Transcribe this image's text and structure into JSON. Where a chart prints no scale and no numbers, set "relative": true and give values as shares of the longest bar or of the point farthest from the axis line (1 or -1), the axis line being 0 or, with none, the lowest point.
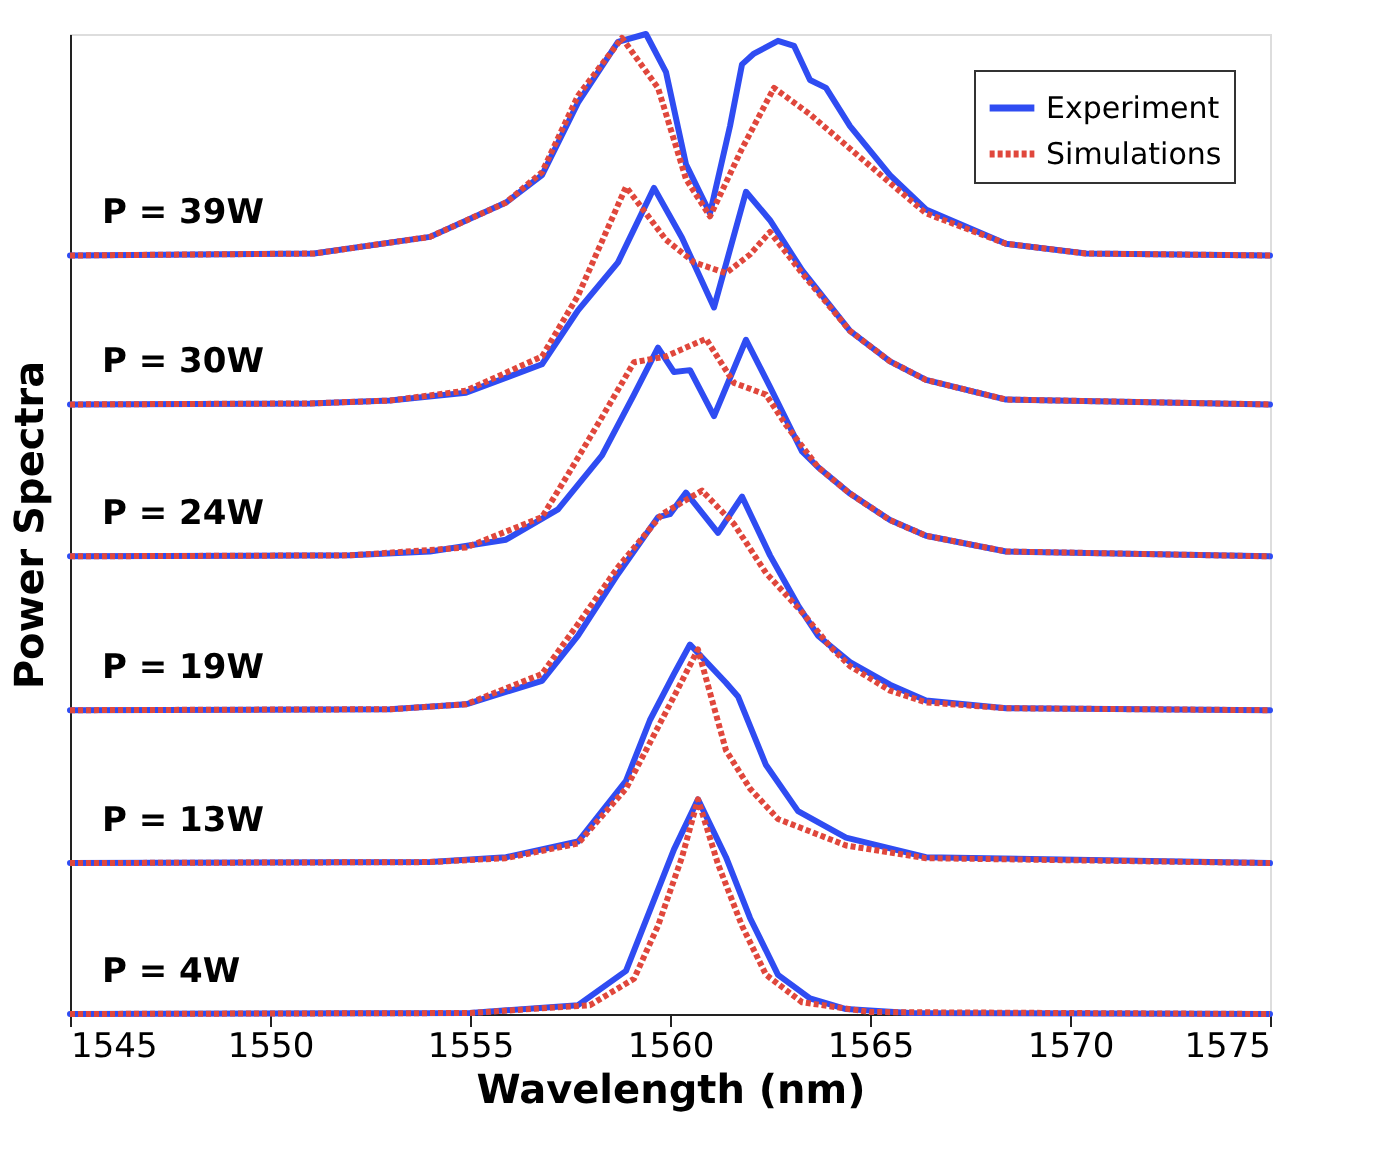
{
  "chart_data": {
    "type": "line",
    "relative": true,
    "xlabel": "Wavelength (nm)",
    "ylabel": "Power Spectra",
    "xlim": [
      1545,
      1575
    ],
    "xticks": [
      1545,
      1550,
      1555,
      1560,
      1565,
      1570,
      1575
    ],
    "grid": false,
    "legend": "top right",
    "marker": "none",
    "series": [
      {
        "name": "Experiment",
        "color": "#2f4cf2",
        "line_style": "solid",
        "x": [
          1545,
          1551.1,
          1554.0,
          1555.9,
          1556.8,
          1557.7,
          1558.7,
          1559.4,
          1559.9,
          1560.4,
          1561.0,
          1561.5,
          1561.8,
          1562.1,
          1562.7,
          1563.1,
          1563.5,
          1563.9,
          1564.5,
          1565.5,
          1566.4,
          1568.4,
          1570.4,
          1575
        ],
        "values": [
          0.774,
          0.776,
          0.793,
          0.828,
          0.856,
          0.93,
          0.992,
          1.0,
          0.961,
          0.867,
          0.817,
          0.906,
          0.969,
          0.98,
          0.993,
          0.988,
          0.953,
          0.945,
          0.906,
          0.856,
          0.821,
          0.786,
          0.776,
          0.774
        ]
      },
      {
        "name": "Simulations",
        "color": "#e0473c",
        "line_style": "dotted",
        "x": [
          1545,
          1551.1,
          1554.0,
          1555.9,
          1556.8,
          1557.7,
          1558.8,
          1559.7,
          1560.4,
          1561.0,
          1561.8,
          1562.6,
          1563.5,
          1564.5,
          1565.5,
          1566.4,
          1568.4,
          1570.4,
          1575
        ],
        "values": [
          0.774,
          0.776,
          0.793,
          0.828,
          0.859,
          0.937,
          0.996,
          0.945,
          0.852,
          0.814,
          0.883,
          0.945,
          0.918,
          0.883,
          0.848,
          0.817,
          0.786,
          0.776,
          0.774
        ]
      },
      {
        "color": "#2f4cf2",
        "line_style": "solid",
        "x": [
          1545,
          1551,
          1553.0,
          1554.9,
          1556.8,
          1557.7,
          1558.7,
          1559.6,
          1560.3,
          1561.1,
          1561.9,
          1562.5,
          1563.3,
          1564.5,
          1565.5,
          1566.4,
          1568.4,
          1575
        ],
        "values": [
          0.622,
          0.623,
          0.626,
          0.634,
          0.663,
          0.718,
          0.767,
          0.843,
          0.792,
          0.721,
          0.839,
          0.81,
          0.759,
          0.697,
          0.666,
          0.647,
          0.627,
          0.622
        ]
      },
      {
        "color": "#e0473c",
        "line_style": "dotted",
        "x": [
          1545,
          1551,
          1553.0,
          1554.9,
          1556.8,
          1557.7,
          1558.9,
          1559.9,
          1560.6,
          1561.4,
          1562.0,
          1562.5,
          1563.3,
          1564.5,
          1565.5,
          1566.4,
          1568.4,
          1575
        ],
        "values": [
          0.622,
          0.623,
          0.626,
          0.636,
          0.671,
          0.733,
          0.844,
          0.79,
          0.767,
          0.756,
          0.775,
          0.798,
          0.756,
          0.697,
          0.666,
          0.647,
          0.627,
          0.622
        ]
      },
      {
        "color": "#2f4cf2",
        "line_style": "solid",
        "x": [
          1545,
          1552,
          1554.0,
          1555.9,
          1557.2,
          1558.3,
          1559.1,
          1559.7,
          1560.1,
          1560.5,
          1561.1,
          1561.9,
          1562.5,
          1563.3,
          1563.7,
          1564.5,
          1565.5,
          1566.4,
          1568.4,
          1575
        ],
        "values": [
          0.467,
          0.468,
          0.472,
          0.484,
          0.515,
          0.57,
          0.632,
          0.68,
          0.655,
          0.657,
          0.61,
          0.688,
          0.64,
          0.574,
          0.558,
          0.531,
          0.504,
          0.488,
          0.472,
          0.467
        ]
      },
      {
        "color": "#e0473c",
        "line_style": "dotted",
        "x": [
          1545,
          1552,
          1554.9,
          1556.8,
          1557.5,
          1558.3,
          1559.1,
          1559.9,
          1560.9,
          1561.6,
          1562.4,
          1562.9,
          1563.7,
          1564.5,
          1565.5,
          1566.4,
          1568.4,
          1575
        ],
        "values": [
          0.467,
          0.468,
          0.476,
          0.507,
          0.554,
          0.609,
          0.665,
          0.671,
          0.689,
          0.644,
          0.632,
          0.601,
          0.558,
          0.531,
          0.504,
          0.488,
          0.472,
          0.467
        ]
      },
      {
        "color": "#2f4cf2",
        "line_style": "solid",
        "x": [
          1545,
          1553,
          1554.9,
          1556.8,
          1557.7,
          1558.7,
          1559.7,
          1560.0,
          1560.4,
          1561.2,
          1561.8,
          1562.5,
          1563.2,
          1563.7,
          1564.5,
          1565.5,
          1566.4,
          1568.4,
          1575
        ],
        "values": [
          0.31,
          0.311,
          0.316,
          0.34,
          0.386,
          0.449,
          0.507,
          0.51,
          0.532,
          0.491,
          0.528,
          0.468,
          0.417,
          0.386,
          0.359,
          0.336,
          0.32,
          0.312,
          0.31
        ]
      },
      {
        "color": "#e0473c",
        "line_style": "dotted",
        "x": [
          1545,
          1553,
          1554.9,
          1556.8,
          1557.7,
          1558.7,
          1559.8,
          1560.8,
          1561.6,
          1562.4,
          1563.3,
          1564.0,
          1564.5,
          1565.5,
          1566.4,
          1568.4,
          1575
        ],
        "values": [
          0.31,
          0.311,
          0.316,
          0.347,
          0.398,
          0.456,
          0.51,
          0.534,
          0.5,
          0.45,
          0.41,
          0.375,
          0.355,
          0.33,
          0.318,
          0.312,
          0.31
        ]
      },
      {
        "color": "#2f4cf2",
        "line_style": "solid",
        "x": [
          1545,
          1554,
          1555.9,
          1557.7,
          1558.9,
          1559.5,
          1560.1,
          1560.5,
          1561.4,
          1561.7,
          1562.4,
          1563.2,
          1564.4,
          1566.4,
          1575
        ],
        "values": [
          0.154,
          0.155,
          0.16,
          0.176,
          0.238,
          0.3,
          0.347,
          0.377,
          0.338,
          0.324,
          0.254,
          0.207,
          0.18,
          0.16,
          0.154
        ]
      },
      {
        "color": "#e0473c",
        "line_style": "dotted",
        "x": [
          1545,
          1554,
          1555.9,
          1557.7,
          1558.9,
          1559.5,
          1560.1,
          1560.7,
          1561.4,
          1562.0,
          1562.7,
          1564.4,
          1566.4,
          1575
        ],
        "values": [
          0.154,
          0.155,
          0.159,
          0.174,
          0.23,
          0.277,
          0.324,
          0.372,
          0.269,
          0.23,
          0.199,
          0.172,
          0.159,
          0.154
        ]
      },
      {
        "color": "#2f4cf2",
        "line_style": "solid",
        "x": [
          1545,
          1555,
          1557.7,
          1558.9,
          1559.5,
          1560.1,
          1560.7,
          1561.4,
          1562.0,
          1562.7,
          1563.5,
          1564.4,
          1566,
          1575
        ],
        "values": [
          0,
          0.001,
          0.009,
          0.044,
          0.106,
          0.168,
          0.219,
          0.16,
          0.098,
          0.04,
          0.016,
          0.005,
          0.001,
          0
        ]
      },
      {
        "color": "#e0473c",
        "line_style": "dotted",
        "x": [
          1545,
          1555,
          1558.0,
          1559.1,
          1559.7,
          1560.3,
          1560.7,
          1561.2,
          1561.8,
          1562.4,
          1563.3,
          1565,
          1575
        ],
        "values": [
          0,
          0.001,
          0.009,
          0.036,
          0.09,
          0.16,
          0.219,
          0.153,
          0.09,
          0.04,
          0.012,
          0.002,
          0
        ]
      }
    ],
    "annotations": [
      "P = 39W",
      "P = 30W",
      "P = 24W",
      "P = 19W",
      "P = 13W",
      "P = 4W"
    ]
  }
}
